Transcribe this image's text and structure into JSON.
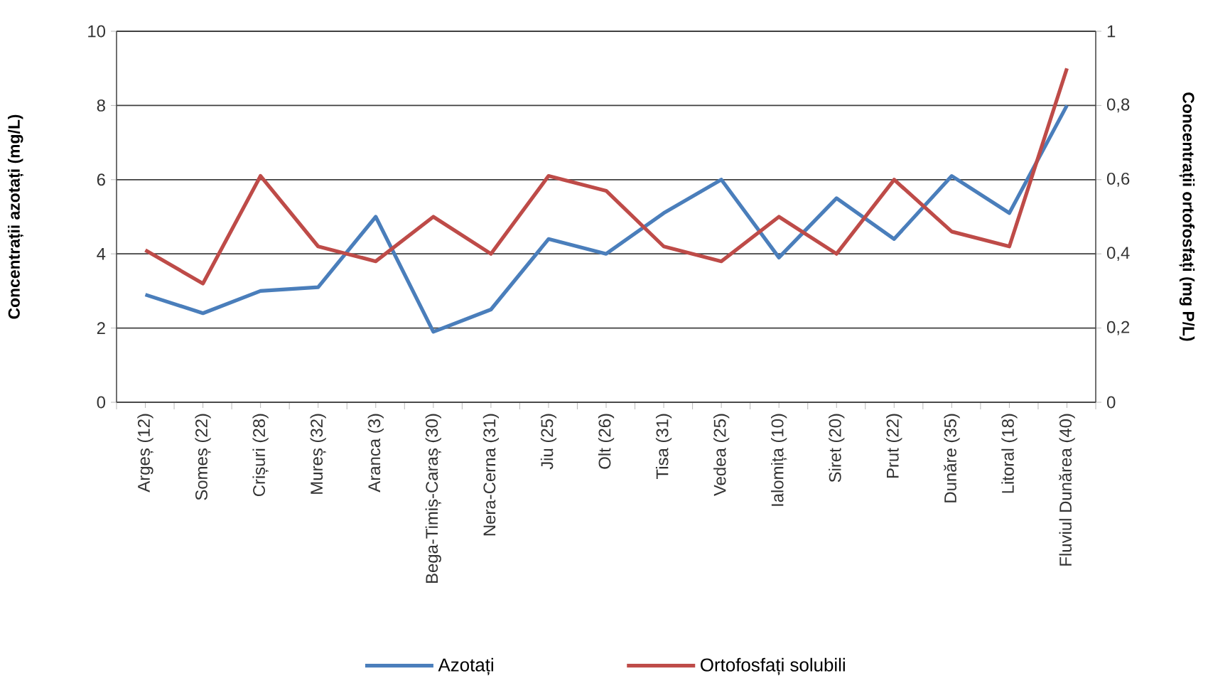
{
  "chart_data": {
    "type": "line",
    "ylabel": "Concentrații azotați (mg/L)",
    "y2label": "Concentrații ortofosfați (mg P/L)",
    "categories": [
      "Argeș (12)",
      "Someș (22)",
      "Crișuri (28)",
      "Mureș (32)",
      "Aranca (3)",
      "Bega-Timiș-Caraș (30)",
      "Nera-Cerna (31)",
      "Jiu (25)",
      "Olt (26)",
      "Tisa (31)",
      "Vedea (25)",
      "Ialomița (10)",
      "Siret (20)",
      "Prut (22)",
      "Dunăre (35)",
      "Litoral (18)",
      "Fluviul Dunărea (40)"
    ],
    "series": [
      {
        "name": "Azotați",
        "color": "#4a7ebb",
        "values": [
          2.9,
          2.4,
          3.0,
          3.1,
          5.0,
          1.9,
          2.5,
          4.4,
          4.0,
          5.1,
          6.0,
          3.9,
          5.5,
          4.4,
          6.1,
          5.1,
          8.0
        ]
      },
      {
        "name": "Ortofosfați solubili",
        "color": "#be4b48",
        "axis": "y2",
        "values": [
          0.41,
          0.32,
          0.61,
          0.42,
          0.38,
          0.5,
          0.4,
          0.61,
          0.57,
          0.42,
          0.38,
          0.5,
          0.4,
          0.6,
          0.46,
          0.42,
          0.9
        ]
      }
    ],
    "ylim": [
      0,
      10
    ],
    "yticks": [
      0,
      2,
      4,
      6,
      8,
      10
    ],
    "y2lim": [
      0,
      1
    ],
    "y2ticks": [
      0,
      {
        "value": 0.2,
        "label": "0,2"
      },
      {
        "value": 0.4,
        "label": "0,4"
      },
      {
        "value": 0.6,
        "label": "0,6"
      },
      {
        "value": 0.8,
        "label": "0,8"
      },
      1
    ],
    "grid": "y",
    "legend": "bottom"
  }
}
